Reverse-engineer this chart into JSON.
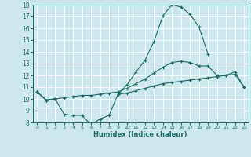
{
  "title": "",
  "xlabel": "Humidex (Indice chaleur)",
  "background_color": "#cce8ec",
  "grid_color": "#b0d4d8",
  "line_color": "#1a6e65",
  "x": [
    0,
    1,
    2,
    3,
    4,
    5,
    6,
    7,
    8,
    9,
    10,
    11,
    12,
    13,
    14,
    15,
    16,
    17,
    18,
    19,
    20,
    21,
    22,
    23
  ],
  "y_top": [
    10.6,
    9.9,
    10.0,
    null,
    null,
    null,
    null,
    null,
    null,
    10.4,
    11.2,
    12.3,
    13.3,
    14.9,
    17.1,
    18.0,
    17.8,
    17.2,
    16.1,
    13.8,
    null,
    null,
    null,
    null
  ],
  "y_mid": [
    10.6,
    9.9,
    10.0,
    10.1,
    10.2,
    10.3,
    10.3,
    10.4,
    10.5,
    10.6,
    10.9,
    11.3,
    11.7,
    12.2,
    12.7,
    13.1,
    13.2,
    13.1,
    12.8,
    12.8,
    12.0,
    12.0,
    12.3,
    11.0
  ],
  "y_bot": [
    10.6,
    9.9,
    10.0,
    8.7,
    8.6,
    8.6,
    7.8,
    8.3,
    8.6,
    10.4,
    10.5,
    10.7,
    10.9,
    11.1,
    11.3,
    11.4,
    11.5,
    11.6,
    11.7,
    11.8,
    11.9,
    12.0,
    12.1,
    11.0
  ],
  "ylim": [
    8,
    18
  ],
  "yticks": [
    8,
    9,
    10,
    11,
    12,
    13,
    14,
    15,
    16,
    17,
    18
  ],
  "xlim": [
    -0.5,
    23.5
  ]
}
